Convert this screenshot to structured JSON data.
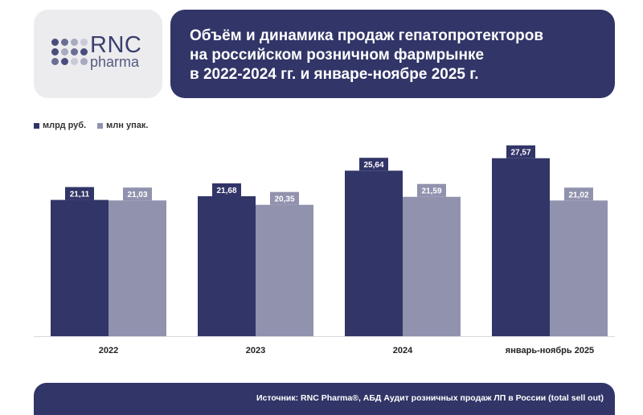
{
  "logo": {
    "brand": "RNC",
    "sub": "pharma"
  },
  "header": {
    "title_lines": [
      "Объём и динамика продаж гепатопротекторов",
      "на российском розничном фармрынке",
      "в 2022-2024 гг. и январе-ноябре 2025 г."
    ]
  },
  "colors": {
    "primary": "#323567",
    "secondary": "#9092ae",
    "logo_bg": "#ececee"
  },
  "chart_data": {
    "type": "bar",
    "title": "Объём и динамика продаж гепатопротекторов на российском розничном фармрынке в 2022-2024 гг. и январе-ноябре 2025 г.",
    "categories": [
      "2022",
      "2023",
      "2024",
      "январь-ноябрь 2025"
    ],
    "series": [
      {
        "name": "млрд руб.",
        "values": [
          21.11,
          21.68,
          25.64,
          27.57
        ],
        "labels": [
          "21,11",
          "21,68",
          "25,64",
          "27,57"
        ]
      },
      {
        "name": "млн упак.",
        "values": [
          21.03,
          20.35,
          21.59,
          21.02
        ],
        "labels": [
          "21,03",
          "20,35",
          "21,59",
          "21,02"
        ]
      }
    ],
    "ylim": [
      0,
      30.9
    ],
    "grid": false,
    "legend": "top-left",
    "xlabel": "",
    "ylabel": ""
  },
  "footer": {
    "source": "Источник: RNC Pharma®, АБД Аудит розничных продаж ЛП в России (total sell out)"
  }
}
